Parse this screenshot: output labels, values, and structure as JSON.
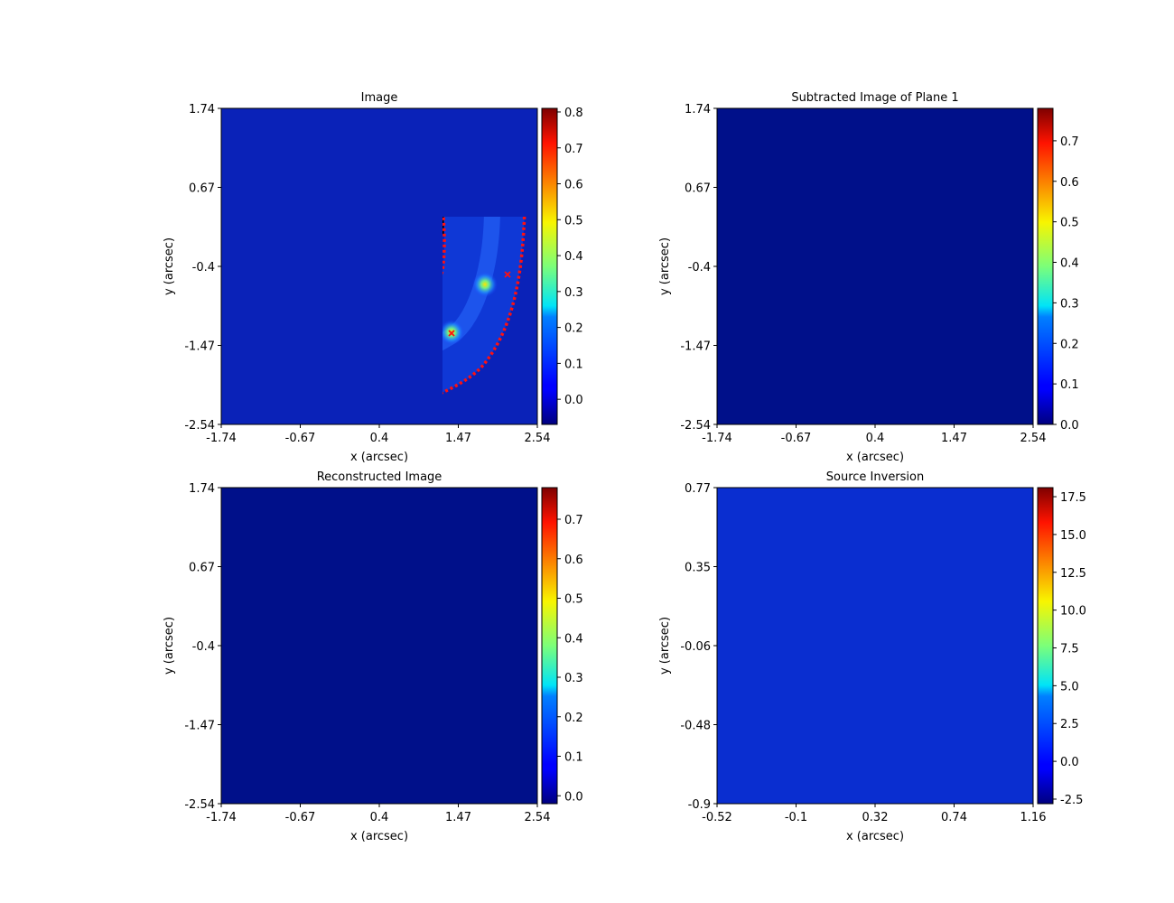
{
  "panels": [
    {
      "title": "Image",
      "xlabel": "x (arcsec)",
      "ylabel": "y (arcsec)",
      "xticks": [
        "-1.74",
        "-0.67",
        "0.4",
        "1.47",
        "2.54"
      ],
      "yticks": [
        "1.74",
        "0.67",
        "-0.4",
        "-1.47",
        "-2.54"
      ],
      "colorbar_ticks": [
        "0.8",
        "0.7",
        "0.6",
        "0.5",
        "0.4",
        "0.3",
        "0.2",
        "0.1",
        "0.0"
      ]
    },
    {
      "title": "Subtracted Image of Plane 1",
      "xlabel": "x (arcsec)",
      "ylabel": "y (arcsec)",
      "xticks": [
        "-1.74",
        "-0.67",
        "0.4",
        "1.47",
        "2.54"
      ],
      "yticks": [
        "1.74",
        "0.67",
        "-0.4",
        "-1.47",
        "-2.54"
      ],
      "colorbar_ticks": [
        "0.7",
        "0.6",
        "0.5",
        "0.4",
        "0.3",
        "0.2",
        "0.1",
        "0.0"
      ]
    },
    {
      "title": "Reconstructed Image",
      "xlabel": "x (arcsec)",
      "ylabel": "y (arcsec)",
      "xticks": [
        "-1.74",
        "-0.67",
        "0.4",
        "1.47",
        "2.54"
      ],
      "yticks": [
        "1.74",
        "0.67",
        "-0.4",
        "-1.47",
        "-2.54"
      ],
      "colorbar_ticks": [
        "0.7",
        "0.6",
        "0.5",
        "0.4",
        "0.3",
        "0.2",
        "0.1",
        "0.0"
      ]
    },
    {
      "title": "Source Inversion",
      "xlabel": "x (arcsec)",
      "ylabel": "y (arcsec)",
      "xticks": [
        "-0.52",
        "-0.1",
        "0.32",
        "0.74",
        "1.16"
      ],
      "yticks": [
        "0.77",
        "0.35",
        "-0.06",
        "-0.48",
        "-0.9"
      ],
      "colorbar_ticks": [
        "17.5",
        "15.0",
        "12.5",
        "10.0",
        "7.5",
        "5.0",
        "2.5",
        "0.0",
        "-2.5"
      ]
    }
  ],
  "chart_data": [
    {
      "type": "heatmap",
      "title": "Image",
      "xlabel": "x (arcsec)",
      "ylabel": "y (arcsec)",
      "xlim": [
        -1.74,
        2.54
      ],
      "ylim": [
        -2.54,
        1.74
      ],
      "colorbar": {
        "min": -0.07,
        "max": 0.81
      },
      "colormap": "jet",
      "overlays": [
        "red mask border",
        "black critical curve",
        "red caustic ring",
        "red x markers"
      ]
    },
    {
      "type": "heatmap",
      "title": "Subtracted Image of Plane 1",
      "xlabel": "x (arcsec)",
      "ylabel": "y (arcsec)",
      "xlim": [
        -1.74,
        2.54
      ],
      "ylim": [
        -2.54,
        1.74
      ],
      "colorbar": {
        "min": 0.0,
        "max": 0.78
      },
      "colormap": "jet"
    },
    {
      "type": "heatmap",
      "title": "Reconstructed Image",
      "xlabel": "x (arcsec)",
      "ylabel": "y (arcsec)",
      "xlim": [
        -1.74,
        2.54
      ],
      "ylim": [
        -2.54,
        1.74
      ],
      "colorbar": {
        "min": -0.02,
        "max": 0.78
      },
      "colormap": "jet",
      "overlays": [
        "cyan pixelization grid"
      ]
    },
    {
      "type": "scatter",
      "title": "Source Inversion",
      "xlabel": "x (arcsec)",
      "ylabel": "y (arcsec)",
      "xlim": [
        -0.52,
        1.16
      ],
      "ylim": [
        -0.9,
        0.77
      ],
      "colorbar": {
        "min": -2.8,
        "max": 18.1
      },
      "colormap": "jet"
    }
  ]
}
